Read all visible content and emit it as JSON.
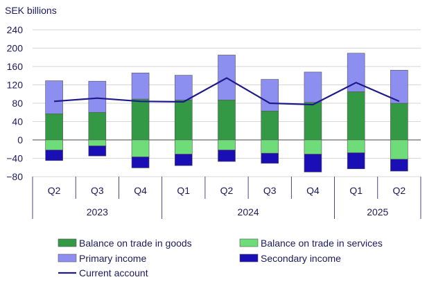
{
  "chart_data": {
    "type": "bar",
    "unit_label": "SEK billions",
    "categories": [
      "Q2",
      "Q3",
      "Q4",
      "Q1",
      "Q2",
      "Q3",
      "Q4",
      "Q1",
      "Q2"
    ],
    "year_groups": [
      {
        "label": "2023",
        "count": 3
      },
      {
        "label": "2024",
        "count": 4
      },
      {
        "label": "2025",
        "count": 2
      }
    ],
    "ylim": [
      -80,
      240
    ],
    "yticks": [
      "240",
      "200",
      "160",
      "120",
      "80",
      "40",
      "0",
      "−40",
      "−80"
    ],
    "ytick_values": [
      240,
      200,
      160,
      120,
      80,
      40,
      0,
      -40,
      -80
    ],
    "stacked": true,
    "series": [
      {
        "name": "Balance on trade in goods",
        "color": "#339944",
        "values": [
          57,
          60,
          89,
          87,
          87,
          63,
          82,
          105,
          80
        ]
      },
      {
        "name": "Primary income",
        "color": "#8c8ef0",
        "values": [
          72,
          68,
          57,
          54,
          98,
          69,
          66,
          84,
          72
        ]
      },
      {
        "name": "Balance on trade in services",
        "color": "#6fdc7a",
        "values": [
          -22,
          -13,
          -37,
          -31,
          -22,
          -29,
          -31,
          -28,
          -42
        ]
      },
      {
        "name": "Secondary income",
        "color": "#1a0fb5",
        "values": [
          -23,
          -22,
          -24,
          -25,
          -25,
          -22,
          -39,
          -35,
          -26
        ]
      }
    ],
    "line_series": {
      "name": "Current account",
      "color": "#1f1a8c",
      "values": [
        84,
        91,
        84,
        83,
        135,
        80,
        77,
        125,
        84
      ]
    },
    "legend": {
      "placement": "bottom",
      "items": [
        {
          "label": "Balance on trade in goods",
          "type": "box",
          "color": "#339944"
        },
        {
          "label": "Balance on trade in services",
          "type": "box",
          "color": "#6fdc7a"
        },
        {
          "label": "Primary income",
          "type": "box",
          "color": "#8c8ef0"
        },
        {
          "label": "Secondary income",
          "type": "box",
          "color": "#1a0fb5"
        },
        {
          "label": "Current account",
          "type": "line",
          "color": "#1f1a8c"
        }
      ]
    },
    "grid": true
  }
}
